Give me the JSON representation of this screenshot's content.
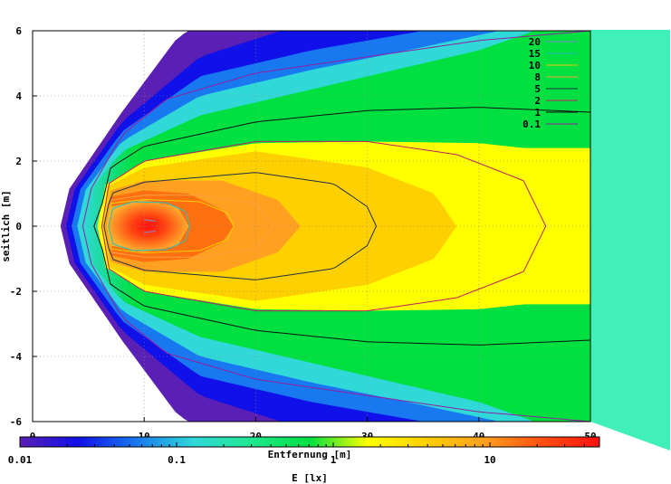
{
  "chart_data": {
    "type": "heatmap",
    "title": "",
    "xlabel": "Entfernung [m]",
    "ylabel": "seitlich [m]",
    "colorbar_label": "E [lx]",
    "xlim": [
      0,
      50
    ],
    "ylim": [
      -6,
      6
    ],
    "x_ticks": [
      {
        "value": 0,
        "label": "0"
      },
      {
        "value": 10,
        "label": "10"
      },
      {
        "value": 20,
        "label": "20"
      },
      {
        "value": 30,
        "label": "30"
      },
      {
        "value": 40,
        "label": "40"
      },
      {
        "value": 50,
        "label": "50"
      }
    ],
    "y_ticks": [
      {
        "value": -6,
        "label": "-6"
      },
      {
        "value": -4,
        "label": "-4"
      },
      {
        "value": -2,
        "label": "-2"
      },
      {
        "value": 0,
        "label": "0"
      },
      {
        "value": 2,
        "label": "2"
      },
      {
        "value": 4,
        "label": "4"
      },
      {
        "value": 6,
        "label": "6"
      }
    ],
    "grid": true,
    "colorbar": {
      "scale": "log",
      "range": [
        0.01,
        50
      ],
      "ticks": [
        {
          "value": 0.01,
          "label": "0.01"
        },
        {
          "value": 0.1,
          "label": "0.1"
        },
        {
          "value": 1,
          "label": "1"
        },
        {
          "value": 10,
          "label": "10"
        }
      ],
      "colors": [
        "#5a1fb4",
        "#1010e8",
        "#1878f0",
        "#30d8d8",
        "#20e890",
        "#00e040",
        "#ffff00",
        "#ffd000",
        "#ffa020",
        "#ff5010",
        "#ff1010"
      ]
    },
    "peak": {
      "x": 9,
      "y": 0,
      "value": 25
    },
    "contours": [
      {
        "level": "20",
        "color": "#8090c8",
        "half_width": [
          [
            10,
            0.2
          ],
          [
            11,
            0.15
          ]
        ]
      },
      {
        "level": "15",
        "color": "#20c0c0",
        "half_width": [
          [
            6.8,
            0
          ],
          [
            7.2,
            0.55
          ],
          [
            9,
            0.75
          ],
          [
            12,
            0.72
          ],
          [
            13.7,
            0.45
          ],
          [
            14.1,
            0
          ]
        ]
      },
      {
        "level": "10",
        "color": "#f0d000",
        "half_width": [
          [
            6.7,
            0
          ],
          [
            7,
            0.7
          ],
          [
            10,
            0.82
          ],
          [
            15,
            0.75
          ],
          [
            17.5,
            0.4
          ],
          [
            18,
            0
          ]
        ]
      },
      {
        "level": "8",
        "color": "#ffa040",
        "half_width": [
          [
            6.6,
            0
          ],
          [
            7,
            0.8
          ],
          [
            10,
            0.95
          ],
          [
            15,
            0.95
          ],
          [
            20,
            0.7
          ],
          [
            21.5,
            0
          ]
        ]
      },
      {
        "level": "5",
        "color": "#203040",
        "half_width": [
          [
            6.4,
            0
          ],
          [
            7,
            1.0
          ],
          [
            10,
            1.35
          ],
          [
            20,
            1.65
          ],
          [
            27,
            1.3
          ],
          [
            30,
            0.6
          ],
          [
            30.8,
            0
          ]
        ]
      },
      {
        "level": "2",
        "color": "#c02060",
        "half_width": [
          [
            6.2,
            0
          ],
          [
            6.8,
            1.3
          ],
          [
            10,
            2.0
          ],
          [
            20,
            2.6
          ],
          [
            30,
            2.6
          ],
          [
            38,
            2.2
          ],
          [
            44,
            1.4
          ],
          [
            46,
            0
          ]
        ]
      },
      {
        "level": "1",
        "color": "#101010",
        "half_width": [
          [
            5.5,
            0
          ],
          [
            6,
            0.35
          ],
          [
            7,
            1.8
          ],
          [
            10,
            2.45
          ],
          [
            20,
            3.2
          ],
          [
            30,
            3.55
          ],
          [
            40,
            3.65
          ],
          [
            50,
            3.5
          ]
        ]
      },
      {
        "level": "0.1",
        "color": "#9020a0",
        "half_width": [
          [
            4.5,
            0
          ],
          [
            5,
            1.0
          ],
          [
            8,
            2.8
          ],
          [
            12,
            3.9
          ],
          [
            20,
            4.7
          ],
          [
            30,
            5.2
          ],
          [
            40,
            5.7
          ],
          [
            50,
            6.0
          ]
        ]
      }
    ]
  }
}
